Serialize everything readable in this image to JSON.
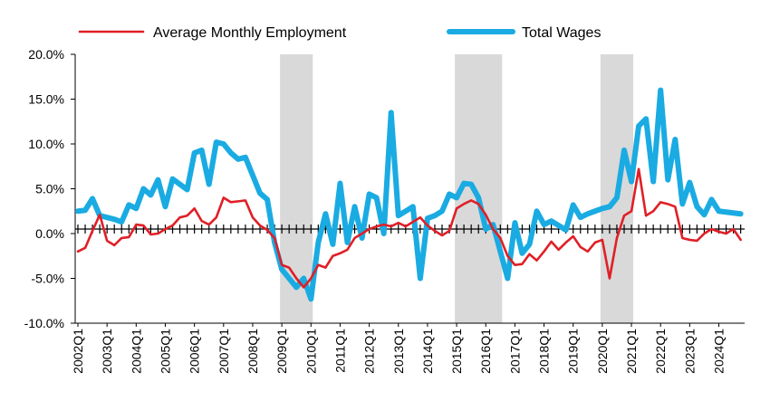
{
  "chart_data": {
    "type": "line",
    "title": "",
    "xlabel": "",
    "ylabel": "",
    "ylim": [
      -10,
      20
    ],
    "yticks": [
      "-10.0%",
      "-5.0%",
      "0.0%",
      "5.0%",
      "10.0%",
      "15.0%",
      "20.0%"
    ],
    "ytick_values": [
      -10,
      -5,
      0,
      5,
      10,
      15,
      20
    ],
    "x_start": "2002Q1",
    "xticks": [
      "2002Q1",
      "2003Q1",
      "2004Q1",
      "2005Q1",
      "2006Q1",
      "2007Q1",
      "2008Q1",
      "2009Q1",
      "2010Q1",
      "2011Q1",
      "2012Q1",
      "2013Q1",
      "2014Q1",
      "2015Q1",
      "2016Q1",
      "2017Q1",
      "2018Q1",
      "2019Q1",
      "2020Q1",
      "2021Q1",
      "2022Q1",
      "2023Q1",
      "2024Q1"
    ],
    "legend_position": "top",
    "grid": false,
    "recession_shading": [
      {
        "start": "2009Q1",
        "end": "2010Q1"
      },
      {
        "start": "2015Q1",
        "end": "2016Q3"
      },
      {
        "start": "2020Q1",
        "end": "2021Q1"
      }
    ],
    "series": [
      {
        "name": "Average Monthly Employment",
        "color": "#e01f26",
        "values": [
          -2.0,
          -1.6,
          0.3,
          2.1,
          -0.8,
          -1.3,
          -0.5,
          -0.4,
          1.0,
          0.9,
          -0.1,
          0.0,
          0.5,
          0.9,
          1.8,
          2.0,
          2.8,
          1.4,
          1.0,
          1.8,
          4.0,
          3.5,
          3.6,
          3.7,
          1.8,
          0.9,
          0.4,
          -0.5,
          -3.5,
          -3.8,
          -5.0,
          -6.0,
          -5.0,
          -3.5,
          -3.8,
          -2.5,
          -2.2,
          -1.8,
          -0.5,
          0.0,
          0.5,
          0.8,
          1.0,
          0.8,
          1.2,
          0.8,
          1.3,
          1.8,
          0.9,
          0.3,
          -0.2,
          0.3,
          2.8,
          3.3,
          3.7,
          3.3,
          2.1,
          0.5,
          -0.5,
          -2.5,
          -3.5,
          -3.4,
          -2.3,
          -3.0,
          -2.0,
          -0.9,
          -1.8,
          -1.0,
          -0.3,
          -1.5,
          -2.0,
          -1.0,
          -0.7,
          -5.0,
          -0.5,
          2.0,
          2.5,
          7.2,
          2.0,
          2.5,
          3.5,
          3.3,
          3.0,
          -0.5,
          -0.7,
          -0.8,
          0.0,
          0.5,
          0.2,
          0.0,
          0.5,
          -0.7
        ]
      },
      {
        "name": "Total Wages",
        "color": "#1aabe2",
        "values": [
          2.5,
          2.6,
          3.9,
          2.0,
          1.8,
          1.6,
          1.3,
          3.2,
          2.8,
          5.0,
          4.3,
          6.0,
          3.0,
          6.1,
          5.5,
          4.9,
          9.0,
          9.3,
          5.5,
          10.2,
          10.0,
          9.0,
          8.3,
          8.5,
          6.5,
          4.5,
          3.8,
          -1.0,
          -4.0,
          -5.0,
          -6.0,
          -5.0,
          -7.3,
          -1.0,
          2.2,
          -1.2,
          5.6,
          -1.0,
          3.0,
          -0.5,
          4.4,
          4.0,
          0.0,
          13.5,
          2.0,
          2.5,
          3.0,
          -5.0,
          1.7,
          2.0,
          2.5,
          4.4,
          4.0,
          5.6,
          5.5,
          4.0,
          0.5,
          1.0,
          -2.0,
          -5.0,
          1.2,
          -2.2,
          -1.2,
          2.5,
          1.0,
          1.4,
          0.9,
          0.4,
          3.2,
          1.8,
          2.2,
          2.5,
          2.8,
          3.0,
          4.0,
          9.3,
          5.8,
          12.0,
          12.8,
          5.8,
          16.0,
          6.0,
          10.5,
          3.3,
          5.7,
          3.0,
          2.1,
          3.8,
          2.5,
          2.4,
          2.3,
          2.2
        ]
      }
    ]
  }
}
